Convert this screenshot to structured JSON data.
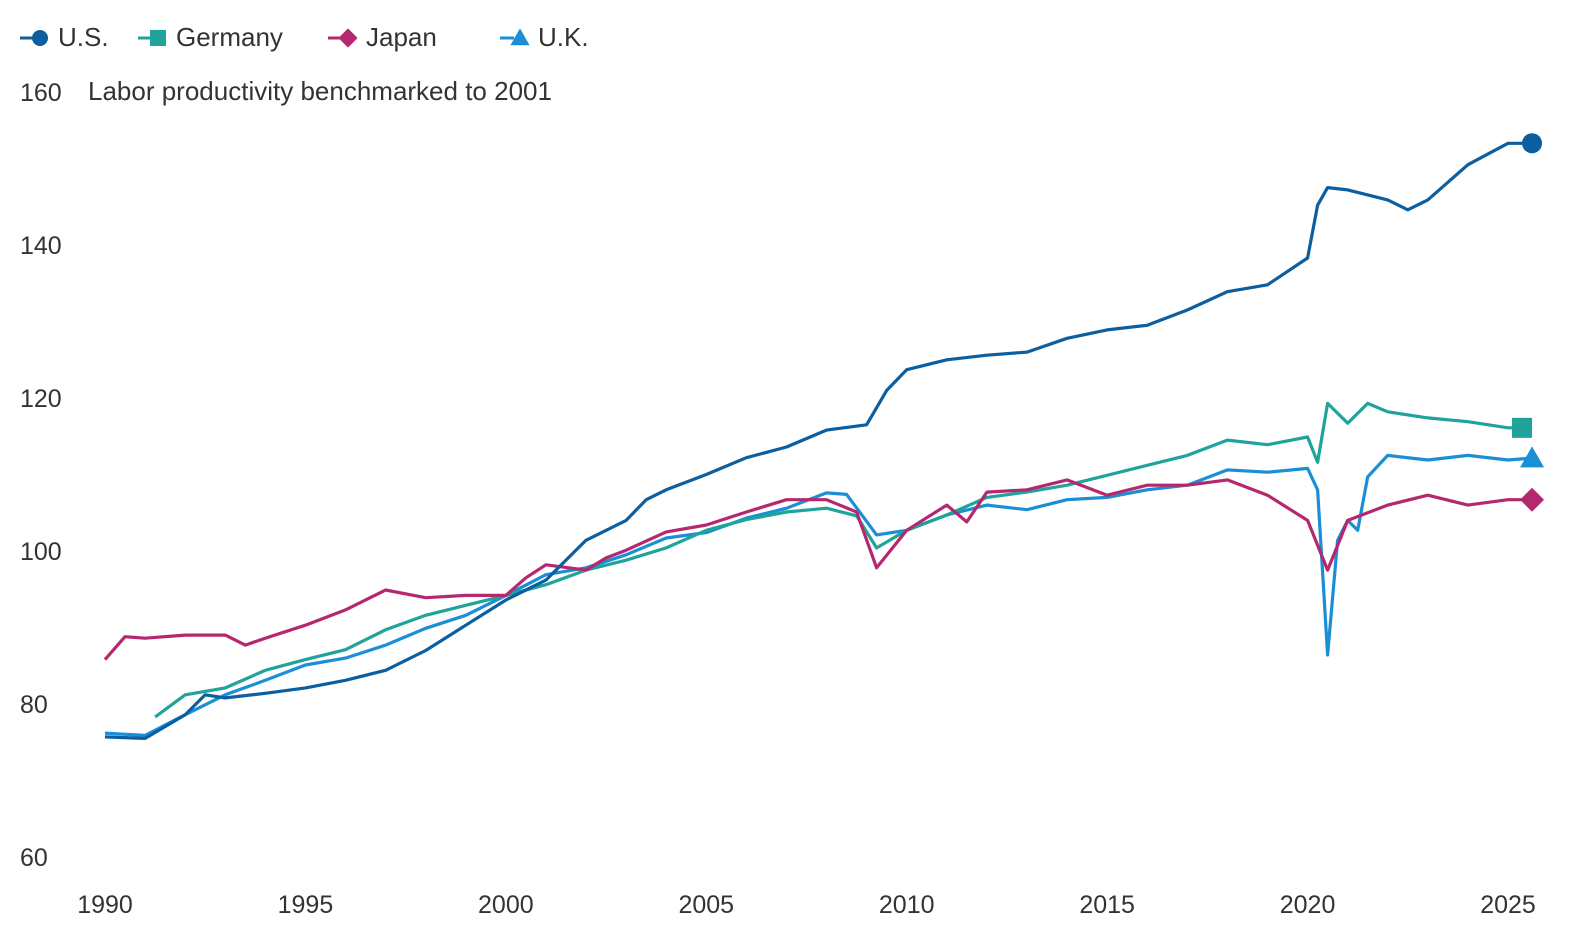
{
  "chart_data": {
    "type": "line",
    "title": "Labor productivity benchmarked to 2001",
    "xlabel": "",
    "ylabel": "",
    "xlim": [
      1990,
      2025.75
    ],
    "ylim": [
      60,
      160
    ],
    "x_ticks": [
      "1990",
      "1995",
      "2000",
      "2005",
      "2010",
      "2015",
      "2020",
      "2025"
    ],
    "y_ticks": [
      "60",
      "80",
      "100",
      "120",
      "140",
      "160"
    ],
    "grid": false,
    "legend_position": "top-left",
    "series": [
      {
        "name": "U.S.",
        "color": "#0b5e9f",
        "marker": "circle",
        "x": [
          1990,
          1991,
          1992,
          1992.5,
          1993,
          1994,
          1995,
          1996,
          1997,
          1998,
          1999,
          2000,
          2001,
          2002,
          2003,
          2003.5,
          2004,
          2005,
          2006,
          2007,
          2008,
          2009,
          2009.5,
          2010,
          2011,
          2012,
          2013,
          2014,
          2015,
          2016,
          2017,
          2018,
          2019,
          2020,
          2020.25,
          2020.5,
          2021,
          2022,
          2022.5,
          2023,
          2024,
          2025,
          2025.5
        ],
        "y": [
          75.7,
          75.5,
          78.6,
          81.2,
          80.8,
          81.4,
          82.1,
          83.1,
          84.4,
          87,
          90.3,
          93.6,
          96.2,
          101.4,
          104,
          106.7,
          108,
          110,
          112.2,
          113.6,
          115.8,
          116.5,
          121,
          123.7,
          125,
          125.6,
          126,
          127.8,
          128.9,
          129.5,
          131.5,
          133.9,
          134.8,
          138.3,
          145.2,
          147.5,
          147.2,
          145.9,
          144.6,
          145.9,
          150.5,
          153.3,
          153.3
        ]
      },
      {
        "name": "Germany",
        "color": "#1fa39a",
        "marker": "square",
        "x": [
          1991.25,
          1992,
          1993,
          1994,
          1995,
          1996,
          1997,
          1998,
          1999,
          2000,
          2001,
          2002,
          2003,
          2004,
          2005,
          2006,
          2007,
          2008,
          2008.75,
          2009.25,
          2010,
          2011,
          2012,
          2013,
          2014,
          2015,
          2016,
          2017,
          2018,
          2019,
          2020,
          2020.25,
          2020.5,
          2021,
          2021.5,
          2022,
          2023,
          2024,
          2025,
          2025.25
        ],
        "y": [
          78.3,
          81.2,
          82.1,
          84.4,
          85.8,
          87.1,
          89.7,
          91.6,
          92.9,
          94.2,
          95.6,
          97.5,
          98.8,
          100.4,
          102.7,
          104.1,
          105.1,
          105.6,
          104.6,
          100.4,
          102.7,
          104.7,
          107,
          107.7,
          108.6,
          109.9,
          111.2,
          112.5,
          114.5,
          113.9,
          114.9,
          111.6,
          119.3,
          116.7,
          119.3,
          118.2,
          117.4,
          116.9,
          116.1,
          116.1
        ]
      },
      {
        "name": "Japan",
        "color": "#b5286f",
        "marker": "diamond",
        "x": [
          1990,
          1990.5,
          1991,
          1992,
          1993,
          1993.5,
          1994,
          1995,
          1996,
          1997,
          1998,
          1999,
          2000,
          2000.5,
          2001,
          2002,
          2002.5,
          2003,
          2004,
          2005,
          2006,
          2007,
          2008,
          2008.75,
          2009.25,
          2010,
          2011,
          2011.5,
          2012,
          2013,
          2014,
          2015,
          2016,
          2017,
          2018,
          2019,
          2020,
          2020.5,
          2021,
          2022,
          2023,
          2024,
          2025,
          2025.5
        ],
        "y": [
          85.8,
          88.8,
          88.6,
          89,
          89,
          87.7,
          88.6,
          90.3,
          92.3,
          94.9,
          93.9,
          94.2,
          94.2,
          96.5,
          98.2,
          97.5,
          99.1,
          100.1,
          102.5,
          103.4,
          105.1,
          106.7,
          106.7,
          105.1,
          97.8,
          102.7,
          106,
          103.8,
          107.7,
          108,
          109.3,
          107.3,
          108.6,
          108.6,
          109.3,
          107.3,
          104,
          97.5,
          104,
          106,
          107.3,
          106,
          106.7,
          106.7
        ]
      },
      {
        "name": "U.K.",
        "color": "#1a8fd6",
        "marker": "triangle",
        "x": [
          1990,
          1991,
          1992,
          1993,
          1994,
          1995,
          1996,
          1997,
          1998,
          1999,
          2000,
          2001,
          2002,
          2003,
          2004,
          2005,
          2006,
          2007,
          2008,
          2008.5,
          2009.25,
          2010,
          2011,
          2012,
          2013,
          2014,
          2015,
          2016,
          2017,
          2018,
          2019,
          2020,
          2020.25,
          2020.5,
          2020.75,
          2021,
          2021.25,
          2021.5,
          2022,
          2023,
          2024,
          2025,
          2025.5
        ],
        "y": [
          76.2,
          75.9,
          78.6,
          81.2,
          83.1,
          85.1,
          86,
          87.7,
          89.9,
          91.6,
          94.2,
          96.9,
          97.8,
          99.5,
          101.7,
          102.4,
          104.3,
          105.6,
          107.6,
          107.4,
          102.1,
          102.7,
          104.7,
          106,
          105.4,
          106.7,
          107,
          108,
          108.6,
          110.6,
          110.3,
          110.8,
          108,
          86.4,
          101.4,
          104,
          102.7,
          109.7,
          112.5,
          111.9,
          112.5,
          111.9,
          112.1
        ]
      }
    ]
  }
}
